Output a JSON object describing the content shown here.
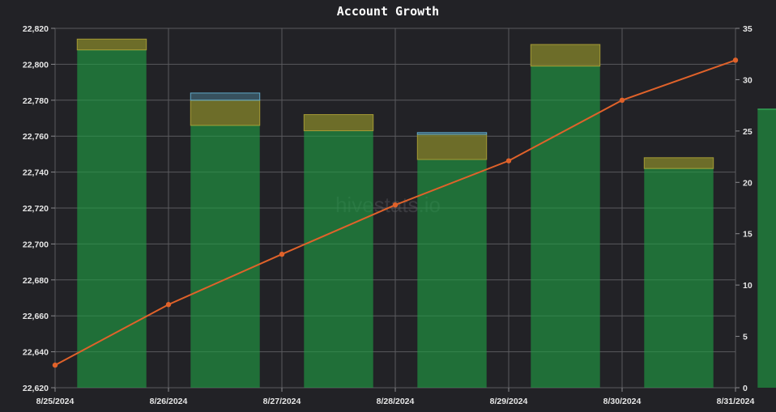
{
  "chart_data": {
    "type": "bar",
    "title": "Account Growth",
    "watermark": "hivestats.io",
    "x": [
      "8/25/2024",
      "8/26/2024",
      "8/27/2024",
      "8/28/2024",
      "8/29/2024",
      "8/30/2024",
      "8/31/2024"
    ],
    "y_left_ticks": [
      "22,620",
      "22,640",
      "22,660",
      "22,680",
      "22,700",
      "22,720",
      "22,740",
      "22,760",
      "22,780",
      "22,800",
      "22,820"
    ],
    "y_right_ticks": [
      "0",
      "5",
      "10",
      "15",
      "20",
      "25",
      "30",
      "35"
    ],
    "ylim_left": [
      22620,
      22820
    ],
    "ylim_right": [
      0,
      35
    ],
    "grid": true,
    "bars": [
      {
        "x": "8/25/2024",
        "base": 22808,
        "upper": 22814,
        "upper_type": "gold"
      },
      {
        "x": "8/26/2024",
        "base": 22766,
        "upper": 22780,
        "upper_type": "gold",
        "cap": 22784
      },
      {
        "x": "8/27/2024",
        "base": 22763,
        "upper": 22772,
        "upper_type": "gold"
      },
      {
        "x": "8/28/2024",
        "base": 22747,
        "upper": 22761,
        "upper_type": "gold",
        "cap": 22762
      },
      {
        "x": "8/29/2024",
        "base": 22799,
        "upper": 22811,
        "upper_type": "gold"
      },
      {
        "x": "8/30/2024",
        "base": 22742,
        "upper": 22748,
        "upper_type": "gold"
      },
      {
        "x": "8/31/2024",
        "base": 22775,
        "upper": null,
        "upper_type": null
      }
    ],
    "series": [
      {
        "axis": "right",
        "values": [
          2.2,
          8.1,
          13.0,
          17.8,
          22.1,
          28.0,
          31.9
        ]
      }
    ],
    "colors": {
      "background": "#222226",
      "grid": "#5a5a5e",
      "base_bar": "#1f9e44",
      "upper_bar": "#7a7a2a",
      "cap": "#5fa8c8",
      "line": "#e0622a"
    }
  }
}
